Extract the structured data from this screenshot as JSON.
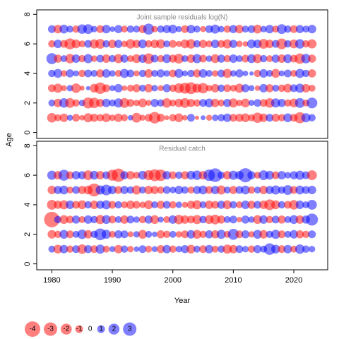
{
  "chart_data": [
    {
      "type": "bubble",
      "title": "Joint sample residuals log(N)",
      "y_label": "Age",
      "colors": {
        "negative": "rgba(255,0,0,0.5)",
        "positive": "rgba(0,0,255,0.5)"
      },
      "x": [
        1980,
        1981,
        1982,
        1983,
        1984,
        1985,
        1986,
        1987,
        1988,
        1989,
        1990,
        1991,
        1992,
        1993,
        1994,
        1995,
        1996,
        1997,
        1998,
        1999,
        2000,
        2001,
        2002,
        2003,
        2004,
        2005,
        2006,
        2007,
        2008,
        2009,
        2010,
        2011,
        2012,
        2013,
        2014,
        2015,
        2016,
        2017,
        2018,
        2019,
        2020,
        2021,
        2022,
        2023
      ],
      "xlim": [
        1977.5,
        2025.6
      ],
      "ylim": [
        -0.4,
        8.3
      ],
      "yticks": [
        0,
        2,
        4,
        6,
        8
      ],
      "ages": [
        1,
        2,
        3,
        4,
        5,
        6,
        7
      ],
      "residuals": [
        [
          -1.5,
          -0.8,
          -1.2,
          0.6,
          -1.0,
          -0.5,
          -1.4,
          -1.1,
          -0.9,
          -1.3,
          -0.7,
          -1.2,
          -0.8,
          0.5,
          -1.6,
          -0.6,
          -1.0,
          -2.2,
          -1.1,
          -0.4,
          -0.9,
          -1.3,
          -0.5,
          1.0,
          -0.3,
          0.4,
          -0.6,
          0.7,
          0.9,
          1.2,
          -1.0,
          -1.1,
          -1.3,
          -0.8,
          -1.8,
          -1.2,
          1.0,
          -1.1,
          -0.9,
          1.3,
          -1.0,
          -2.0,
          1.4,
          0.9
        ],
        [
          0.8,
          -1.2,
          1.5,
          -1.6,
          -0.9,
          0.7,
          -2.0,
          -1.8,
          -1.1,
          1.2,
          0.8,
          1.4,
          -1.6,
          -1.0,
          -0.7,
          -1.3,
          -0.6,
          1.1,
          0.9,
          -1.5,
          -0.8,
          -1.2,
          -1.6,
          -1.1,
          -0.9,
          1.0,
          1.3,
          -1.2,
          -0.8,
          1.1,
          -1.4,
          -0.7,
          -1.3,
          0.6,
          1.0,
          -1.0,
          -1.5,
          1.4,
          1.1,
          -0.9,
          -1.3,
          1.6,
          -0.8,
          1.9
        ],
        [
          -1.0,
          -1.4,
          -0.6,
          0.7,
          -1.5,
          -0.4,
          0.3,
          -1.3,
          -2.2,
          -1.0,
          0.6,
          1.2,
          -0.5,
          -0.8,
          -1.1,
          0.8,
          -1.2,
          0.7,
          -0.6,
          1.1,
          -0.9,
          -1.6,
          -2.0,
          -2.3,
          -1.4,
          -1.8,
          -0.7,
          -1.2,
          0.9,
          -1.0,
          -0.8,
          -1.4,
          1.1,
          0.6,
          -0.5,
          1.2,
          -1.1,
          0.8,
          -0.9,
          -1.3,
          1.0,
          1.4,
          -1.2,
          -0.8
        ],
        [
          0.9,
          1.3,
          -0.7,
          1.1,
          0.6,
          -0.9,
          1.0,
          0.8,
          -1.1,
          1.2,
          0.7,
          -0.8,
          1.4,
          1.0,
          -0.6,
          0.9,
          -1.2,
          0.8,
          1.1,
          0.7,
          -1.0,
          1.3,
          0.6,
          0.9,
          -1.1,
          1.2,
          0.8,
          -0.7,
          1.0,
          -1.4,
          0.7,
          1.1,
          0.5,
          0.3,
          -0.9,
          1.2,
          0.8,
          -1.3,
          0.6,
          1.0,
          -0.8,
          1.4,
          0.9,
          -1.1
        ],
        [
          2.0,
          -1.1,
          0.8,
          -1.5,
          1.2,
          -0.9,
          1.4,
          -0.7,
          1.0,
          -1.2,
          0.9,
          -1.4,
          1.1,
          -0.8,
          -1.3,
          1.2,
          -1.9,
          1.0,
          -0.9,
          1.3,
          -1.1,
          -1.6,
          0.8,
          -1.2,
          1.4,
          -1.0,
          0.7,
          -1.3,
          1.1,
          -0.9,
          1.2,
          0.8,
          -1.0,
          1.3,
          -1.4,
          0.9,
          -0.8,
          1.1,
          -1.2,
          1.3,
          -1.0,
          -1.8,
          1.5,
          -1.1
        ],
        [
          -0.9,
          1.2,
          -1.0,
          -2.0,
          -1.3,
          -0.8,
          1.0,
          -1.4,
          -1.6,
          0.9,
          -1.2,
          1.1,
          -0.7,
          -1.5,
          -1.1,
          1.3,
          -0.9,
          -1.2,
          -1.4,
          0.8,
          -1.0,
          -0.6,
          -1.3,
          -1.5,
          0.9,
          -1.1,
          -0.8,
          1.2,
          -1.0,
          -1.4,
          1.1,
          -0.7,
          -0.5,
          1.3,
          1.2,
          -1.6,
          -1.2,
          1.0,
          -1.9,
          0.9,
          -1.3,
          1.5,
          -0.9,
          -1.4
        ],
        [
          1.0,
          -1.2,
          1.3,
          0.8,
          -0.9,
          1.5,
          1.6,
          0.7,
          -1.0,
          1.2,
          0.5,
          1.1,
          -0.8,
          0.9,
          0.8,
          -1.1,
          2.0,
          -0.7,
          0.9,
          1.1,
          1.3,
          0.6,
          -1.0,
          1.2,
          0.8,
          -0.6,
          1.0,
          1.4,
          0.7,
          -0.9,
          1.1,
          -1.2,
          0.8,
          1.0,
          -1.3,
          0.7,
          1.2,
          -0.8,
          1.6,
          0.9,
          -1.0,
          1.1,
          0.8,
          1.2
        ]
      ]
    },
    {
      "type": "bubble",
      "title": "Residual catch",
      "x_label": "Year",
      "colors": {
        "negative": "rgba(255,0,0,0.5)",
        "positive": "rgba(0,0,255,0.5)"
      },
      "x": [
        1980,
        1981,
        1982,
        1983,
        1984,
        1985,
        1986,
        1987,
        1988,
        1989,
        1990,
        1991,
        1992,
        1993,
        1994,
        1995,
        1996,
        1997,
        1998,
        1999,
        2000,
        2001,
        2002,
        2003,
        2004,
        2005,
        2006,
        2007,
        2008,
        2009,
        2010,
        2011,
        2012,
        2013,
        2014,
        2015,
        2016,
        2017,
        2018,
        2019,
        2020,
        2021,
        2022,
        2023
      ],
      "xlim": [
        1977.5,
        2025.6
      ],
      "xticks": [
        1980,
        1990,
        2000,
        2010,
        2020
      ],
      "ylim": [
        -0.4,
        8.3
      ],
      "yticks": [
        0,
        2,
        4,
        6,
        8
      ],
      "ages": [
        1,
        2,
        3,
        4,
        5,
        6
      ],
      "residuals": [
        [
          0.8,
          -1.3,
          1.2,
          -0.9,
          1.0,
          -1.5,
          1.1,
          -1.0,
          1.4,
          -0.8,
          0.6,
          -1.2,
          0.9,
          -0.7,
          0.5,
          1.0,
          -0.8,
          0.6,
          -1.1,
          1.2,
          -0.9,
          0.7,
          1.1,
          -1.3,
          0.8,
          -1.0,
          1.2,
          -0.8,
          0.9,
          -1.4,
          -1.2,
          1.0,
          0.7,
          -0.9,
          1.1,
          0.8,
          2.2,
          1.3,
          -1.0,
          1.2,
          -0.8,
          1.5,
          0.9,
          0.7
        ],
        [
          -1.2,
          -0.9,
          1.3,
          -1.0,
          0.8,
          1.5,
          -1.2,
          0.9,
          2.3,
          1.4,
          -0.8,
          1.1,
          1.0,
          -0.6,
          0.7,
          -1.3,
          0.8,
          0.5,
          -1.1,
          -0.9,
          0.8,
          -0.7,
          -1.0,
          1.2,
          -1.3,
          -0.9,
          1.1,
          -1.1,
          1.4,
          -0.8,
          2.0,
          -1.0,
          1.1,
          -0.7,
          1.3,
          -1.2,
          0.9,
          1.4,
          -1.0,
          0.8,
          1.2,
          -1.1,
          -0.9,
          1.0
        ],
        [
          -4.0,
          0.9,
          -1.3,
          -1.0,
          1.1,
          -0.8,
          1.2,
          0.9,
          -1.4,
          1.3,
          -1.0,
          0.8,
          -1.2,
          1.0,
          0.7,
          -0.9,
          1.1,
          -1.3,
          0.6,
          -0.8,
          1.2,
          -1.5,
          -1.2,
          -1.0,
          -1.4,
          0.9,
          -1.3,
          -1.6,
          -1.1,
          0.8,
          1.0,
          -0.5,
          1.1,
          0.7,
          -1.3,
          1.2,
          -0.9,
          1.0,
          -1.1,
          0.8,
          1.3,
          -1.2,
          1.1,
          2.4
        ],
        [
          -1.6,
          -1.1,
          -1.4,
          1.2,
          -1.0,
          -1.3,
          0.9,
          -1.2,
          1.1,
          1.4,
          -1.0,
          0.9,
          -0.8,
          -1.2,
          -1.0,
          -0.7,
          -1.3,
          0.8,
          -1.1,
          1.0,
          -0.9,
          0.7,
          -0.6,
          -1.1,
          -1.4,
          0.8,
          -1.2,
          -1.0,
          1.1,
          -1.3,
          0.9,
          -0.8,
          1.2,
          -1.1,
          1.0,
          -1.2,
          -1.9,
          -1.3,
          0.9,
          -1.0,
          -1.5,
          1.2,
          0.8,
          1.6
        ],
        [
          -1.2,
          1.1,
          1.3,
          -0.8,
          1.0,
          -1.1,
          -1.3,
          -2.8,
          1.4,
          1.9,
          1.2,
          -1.0,
          1.1,
          0.9,
          -1.4,
          0.8,
          -1.2,
          -1.1,
          -0.9,
          1.0,
          0.7,
          1.2,
          0.9,
          -0.8,
          1.1,
          1.3,
          -1.0,
          1.2,
          -1.4,
          0.8,
          -1.1,
          1.0,
          1.3,
          -0.9,
          0.8,
          -1.2,
          1.1,
          1.4,
          0.9,
          1.6,
          -1.0,
          1.3,
          1.0,
          1.2
        ],
        [
          1.4,
          -1.2,
          2.0,
          -1.0,
          1.2,
          1.1,
          -1.6,
          1.3,
          -1.2,
          1.0,
          -2.0,
          -3.0,
          1.1,
          -1.2,
          -0.8,
          1.3,
          -1.7,
          -2.4,
          -2.2,
          1.2,
          -1.0,
          0.9,
          -1.1,
          1.3,
          1.5,
          -1.2,
          2.2,
          3.1,
          0.9,
          -1.2,
          1.4,
          1.2,
          3.3,
          1.1,
          -0.8,
          1.6,
          1.3,
          -1.0,
          1.2,
          0.7,
          1.1,
          1.4,
          1.0,
          -1.6
        ]
      ]
    }
  ],
  "legend": {
    "values": [
      -4,
      -3,
      -2,
      -1,
      0,
      1,
      2,
      3
    ]
  }
}
